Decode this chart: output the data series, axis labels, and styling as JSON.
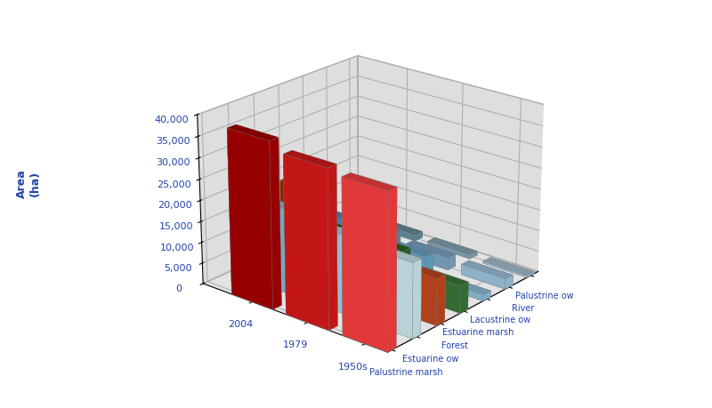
{
  "categories": [
    "Palustrine marsh",
    "Estuarine ow",
    "Forest",
    "Estuarine marsh",
    "Lacustrine ow",
    "River",
    "Palustrine ow"
  ],
  "series": [
    "1950s",
    "1979",
    "2004"
  ],
  "values": {
    "1950s": [
      36000,
      17500,
      11000,
      6500,
      1500,
      2500,
      500
    ],
    "1979": [
      37000,
      18500,
      12500,
      10000,
      6000,
      3000,
      1000
    ],
    "2004": [
      39000,
      20000,
      22000,
      10000,
      8500,
      4500,
      1500
    ]
  },
  "cat_colors": {
    "Palustrine marsh": [
      "#FF4040",
      "#DD1A1A",
      "#AA0000"
    ],
    "Estuarine ow": [
      "#D0EEF5",
      "#A8D8EA",
      "#80C2D8"
    ],
    "Forest": [
      "#C84820",
      "#A83010",
      "#883000"
    ],
    "Estuarine marsh": [
      "#3A7A3A",
      "#2A6A2A",
      "#1A5A1A"
    ],
    "Lacustrine ow": [
      "#90C4E0",
      "#6AAAD0",
      "#4A90C0"
    ],
    "River": [
      "#A0C8E4",
      "#80AACC",
      "#6090B4"
    ],
    "Palustrine ow": [
      "#A8C8DC",
      "#88AABC",
      "#6890A0"
    ]
  },
  "yticks": [
    0,
    5000,
    10000,
    15000,
    20000,
    25000,
    30000,
    35000,
    40000
  ],
  "ylabel": "Area\n(ha)",
  "bg_color": "#C8C8C8",
  "wall_color": "#C0C0C0",
  "floor_color": "#A8A8A8"
}
